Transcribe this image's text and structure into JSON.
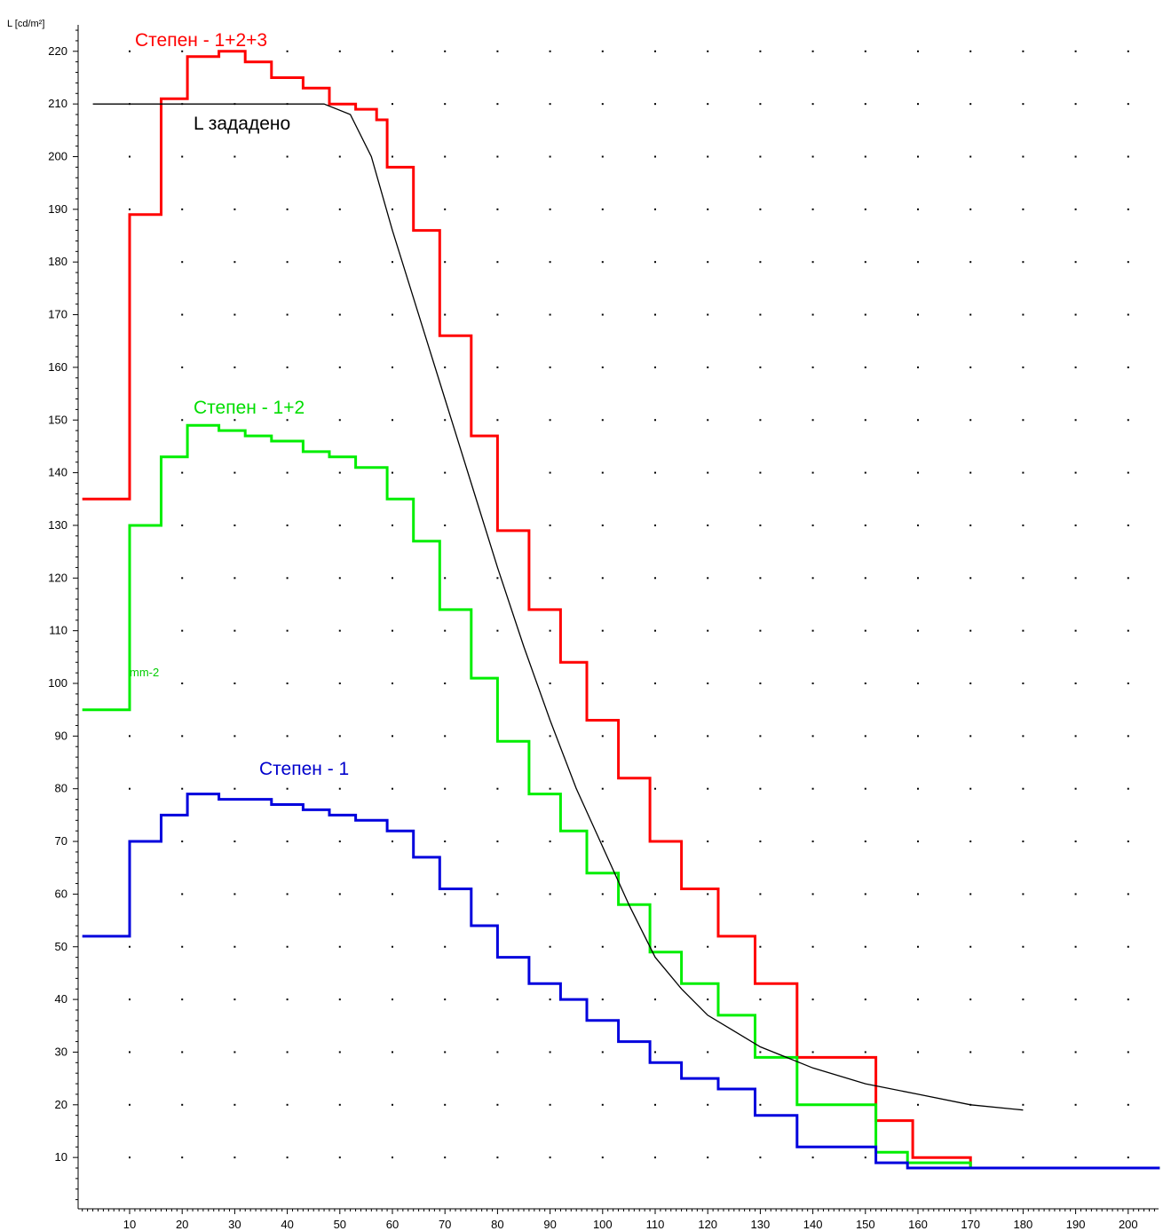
{
  "chart_data": {
    "type": "line",
    "ylabel": "L [cd/m²]",
    "xlim": [
      0,
      205
    ],
    "ylim": [
      0,
      225
    ],
    "xticks": [
      10,
      20,
      30,
      40,
      50,
      60,
      70,
      80,
      90,
      100,
      110,
      120,
      130,
      140,
      150,
      160,
      170,
      180,
      190,
      200
    ],
    "yticks": [
      10,
      20,
      30,
      40,
      50,
      60,
      70,
      80,
      90,
      100,
      110,
      120,
      130,
      140,
      150,
      160,
      170,
      180,
      190,
      200,
      210,
      220
    ],
    "grid": "dotted",
    "annotation": "mm-2",
    "series": [
      {
        "name": "Степен - 1+2+3",
        "color": "#ff0000",
        "step": true,
        "x": [
          1,
          10,
          10,
          16,
          16,
          21,
          21,
          27,
          27,
          32,
          32,
          37,
          37,
          43,
          43,
          48,
          48,
          53,
          53,
          57,
          57,
          59,
          59,
          64,
          64,
          69,
          69,
          75,
          75,
          80,
          80,
          86,
          86,
          92,
          92,
          97,
          97,
          103,
          103,
          109,
          109,
          115,
          115,
          122,
          122,
          129,
          129,
          137,
          137,
          146,
          146,
          152,
          152,
          159,
          159,
          170,
          170,
          206
        ],
        "y": [
          135,
          135,
          189,
          189,
          211,
          211,
          219,
          219,
          220,
          220,
          218,
          218,
          215,
          215,
          213,
          213,
          210,
          210,
          209,
          209,
          207,
          207,
          198,
          198,
          186,
          186,
          166,
          166,
          147,
          147,
          129,
          129,
          114,
          114,
          104,
          104,
          93,
          93,
          82,
          82,
          70,
          70,
          61,
          61,
          52,
          52,
          43,
          43,
          29,
          29,
          29,
          29,
          17,
          17,
          10,
          10,
          8,
          8
        ]
      },
      {
        "name": "Степен - 1+2",
        "color": "#00ee00",
        "step": true,
        "x": [
          1,
          10,
          10,
          16,
          16,
          21,
          21,
          27,
          27,
          32,
          32,
          37,
          37,
          43,
          43,
          48,
          48,
          53,
          53,
          59,
          59,
          64,
          64,
          69,
          69,
          75,
          75,
          80,
          80,
          86,
          86,
          92,
          92,
          97,
          97,
          103,
          103,
          109,
          109,
          115,
          115,
          122,
          122,
          129,
          129,
          137,
          137,
          152,
          152,
          158,
          158,
          170,
          170,
          206
        ],
        "y": [
          95,
          95,
          130,
          130,
          143,
          143,
          149,
          149,
          148,
          148,
          147,
          147,
          146,
          146,
          144,
          144,
          143,
          143,
          141,
          141,
          135,
          135,
          127,
          127,
          114,
          114,
          101,
          101,
          89,
          89,
          79,
          79,
          72,
          72,
          64,
          64,
          58,
          58,
          49,
          49,
          43,
          43,
          37,
          37,
          29,
          29,
          20,
          20,
          11,
          11,
          9,
          9,
          8,
          8
        ]
      },
      {
        "name": "Степен - 1",
        "color": "#0000dd",
        "step": true,
        "x": [
          1,
          10,
          10,
          16,
          16,
          21,
          21,
          27,
          27,
          32,
          32,
          37,
          37,
          43,
          43,
          48,
          48,
          53,
          53,
          59,
          59,
          64,
          64,
          69,
          69,
          75,
          75,
          80,
          80,
          86,
          86,
          92,
          92,
          97,
          97,
          103,
          103,
          109,
          109,
          115,
          115,
          122,
          122,
          129,
          129,
          137,
          137,
          146,
          146,
          152,
          152,
          158,
          158,
          170,
          170,
          206
        ],
        "y": [
          52,
          52,
          70,
          70,
          75,
          75,
          79,
          79,
          78,
          78,
          78,
          78,
          77,
          77,
          76,
          76,
          75,
          75,
          74,
          74,
          72,
          72,
          67,
          67,
          61,
          61,
          54,
          54,
          48,
          48,
          43,
          43,
          40,
          40,
          36,
          36,
          32,
          32,
          28,
          28,
          25,
          25,
          23,
          23,
          18,
          18,
          12,
          12,
          12,
          12,
          9,
          9,
          8,
          8,
          8,
          8
        ]
      },
      {
        "name": "L зададено",
        "color": "#000000",
        "step": false,
        "x": [
          3,
          10,
          20,
          30,
          40,
          47,
          52,
          56,
          60,
          65,
          70,
          75,
          80,
          85,
          90,
          95,
          100,
          105,
          110,
          115,
          120,
          125,
          130,
          140,
          150,
          160,
          170,
          180
        ],
        "y": [
          210,
          210,
          210,
          210,
          210,
          210,
          208,
          200,
          186,
          170,
          154,
          138,
          122,
          107,
          93,
          80,
          69,
          58,
          48,
          42,
          37,
          34,
          31,
          27,
          24,
          22,
          20,
          19
        ]
      }
    ]
  }
}
